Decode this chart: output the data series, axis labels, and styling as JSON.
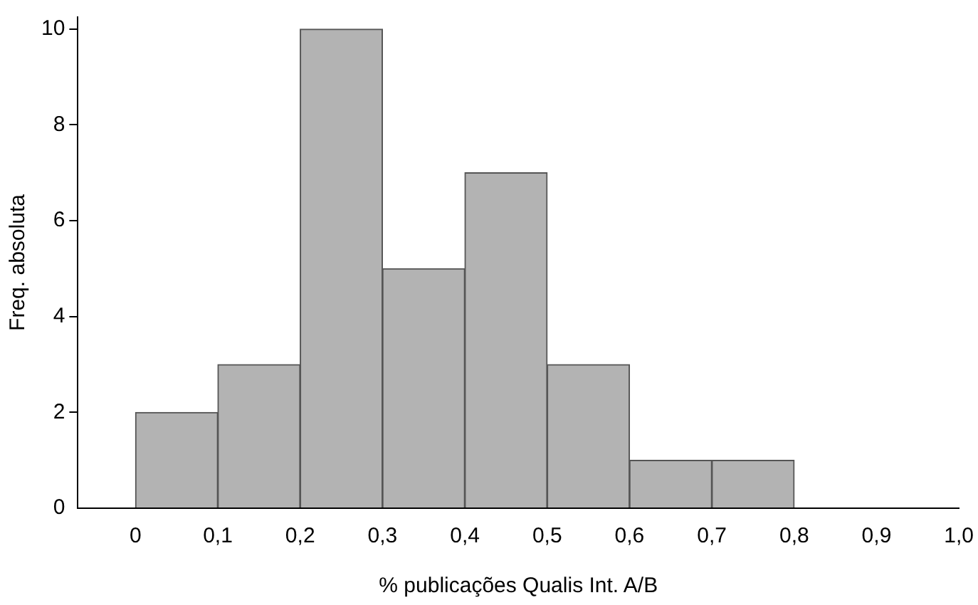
{
  "chart_data": {
    "type": "histogram",
    "xlabel": "% publicações Qualis Int. A/B",
    "ylabel": "Freq. absoluta",
    "bins": [
      0,
      0.1,
      0.2,
      0.3,
      0.4,
      0.5,
      0.6,
      0.7,
      0.8
    ],
    "values": [
      2,
      3,
      10,
      5,
      7,
      3,
      1,
      1
    ],
    "color": "#b3b3b3",
    "xlim": [
      -0.07,
      1.0
    ],
    "xticks": [
      0,
      {
        "value": 0.1,
        "label": "0,1"
      },
      {
        "value": 0.2,
        "label": "0,2"
      },
      {
        "value": 0.3,
        "label": "0,3"
      },
      {
        "value": 0.4,
        "label": "0,4"
      },
      {
        "value": 0.5,
        "label": "0,5"
      },
      {
        "value": 0.6,
        "label": "0,6"
      },
      {
        "value": 0.7,
        "label": "0,7"
      },
      {
        "value": 0.8,
        "label": "0,8"
      },
      {
        "value": 0.9,
        "label": "0,9"
      },
      {
        "value": 1.0,
        "label": "1,0"
      }
    ],
    "ylim": [
      0,
      10.25
    ],
    "yticks": [
      0,
      2,
      4,
      6,
      8,
      10
    ],
    "grid": false,
    "legend": false
  }
}
